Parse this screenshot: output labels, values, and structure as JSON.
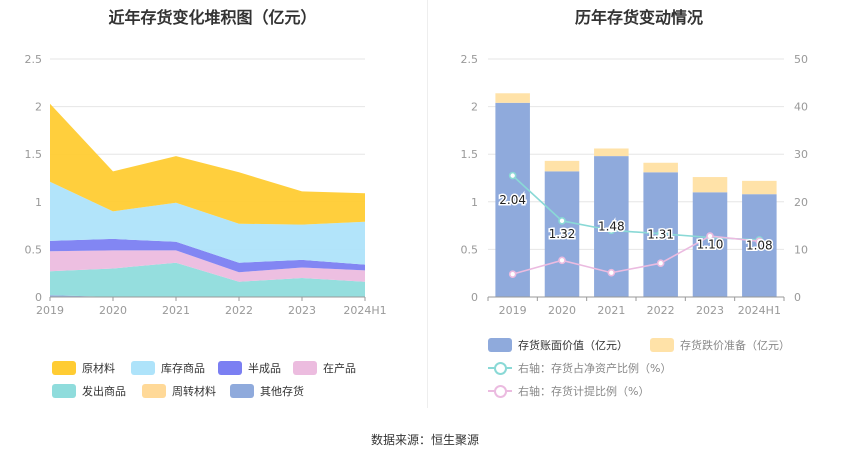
{
  "source": "数据来源：恒生聚源",
  "colors": {
    "raw_materials": "#ffcc33",
    "finished_goods": "#aee3fa",
    "semi_finished": "#7b7ff2",
    "wip": "#ecbcdf",
    "goods_shipped": "#8fdcdc",
    "turnover_materials": "#ffd998",
    "other": "#8faadc",
    "book_value_bar": "#8faadc",
    "impairment_bar": "#ffe2a8",
    "ratio_net_assets_line": "#8ad9d6",
    "ratio_provision_line": "#ebbbe0"
  },
  "chart_data": [
    {
      "type": "area",
      "title": "近年存货变化堆积图（亿元）",
      "categories": [
        "2019",
        "2020",
        "2021",
        "2022",
        "2023",
        "2024H1"
      ],
      "ylim": [
        0,
        2.5
      ],
      "yticks": [
        "0",
        "0.5",
        "1",
        "1.5",
        "2",
        "2.5"
      ],
      "stacking": "stacked",
      "series": [
        {
          "name": "其他存货",
          "key": "other",
          "values": [
            0.02,
            0.0,
            0.0,
            0.0,
            0.0,
            0.0
          ]
        },
        {
          "name": "发出商品",
          "key": "goods_shipped",
          "values": [
            0.25,
            0.3,
            0.36,
            0.16,
            0.2,
            0.16
          ]
        },
        {
          "name": "在产品",
          "key": "wip",
          "values": [
            0.21,
            0.19,
            0.13,
            0.1,
            0.11,
            0.12
          ]
        },
        {
          "name": "半成品",
          "key": "semi_finished",
          "values": [
            0.11,
            0.12,
            0.09,
            0.1,
            0.08,
            0.06
          ]
        },
        {
          "name": "库存商品",
          "key": "finished_goods",
          "values": [
            0.62,
            0.29,
            0.41,
            0.41,
            0.37,
            0.45
          ]
        },
        {
          "name": "周转材料",
          "key": "turnover_materials",
          "values": [
            0.0,
            0.0,
            0.0,
            0.0,
            0.0,
            0.0
          ]
        },
        {
          "name": "原材料",
          "key": "raw_materials",
          "values": [
            0.82,
            0.42,
            0.49,
            0.54,
            0.35,
            0.3
          ]
        }
      ],
      "legend": {
        "placement": "bottom",
        "items": [
          {
            "label": "原材料",
            "key": "raw_materials"
          },
          {
            "label": "库存商品",
            "key": "finished_goods"
          },
          {
            "label": "半成品",
            "key": "semi_finished"
          },
          {
            "label": "在产品",
            "key": "wip"
          },
          {
            "label": "发出商品",
            "key": "goods_shipped"
          },
          {
            "label": "周转材料",
            "key": "turnover_materials"
          },
          {
            "label": "其他存货",
            "key": "other"
          }
        ]
      },
      "grid": true
    },
    {
      "type": "bar",
      "title": "历年存货变动情况",
      "categories": [
        "2019",
        "2020",
        "2021",
        "2022",
        "2023",
        "2024H1"
      ],
      "ylim": [
        0,
        2.5
      ],
      "yticks": [
        "0",
        "0.5",
        "1",
        "1.5",
        "2",
        "2.5"
      ],
      "y2lim": [
        0,
        50
      ],
      "y2ticks": [
        "0",
        "10",
        "20",
        "30",
        "40",
        "50"
      ],
      "series": [
        {
          "name": "存货账面价值（亿元）",
          "key": "book_value_bar",
          "axis": "left",
          "kind": "bar",
          "values": [
            2.04,
            1.32,
            1.48,
            1.31,
            1.1,
            1.08
          ],
          "labels": [
            "2.04",
            "1.32",
            "1.48",
            "1.31",
            "1.10",
            "1.08"
          ]
        },
        {
          "name": "存货跌价准备（亿元）",
          "key": "impairment_bar",
          "axis": "left",
          "kind": "bar-stacked",
          "values": [
            0.1,
            0.11,
            0.08,
            0.1,
            0.16,
            0.14
          ]
        },
        {
          "name": "右轴：存货占净资产比例（%）",
          "key": "ratio_net_assets_line",
          "axis": "right",
          "kind": "line",
          "values": [
            25.5,
            16.0,
            14.0,
            13.3,
            12.5,
            12.0
          ]
        },
        {
          "name": "右轴：存货计提比例（%）",
          "key": "ratio_provision_line",
          "axis": "right",
          "kind": "line",
          "values": [
            4.8,
            7.7,
            5.1,
            7.1,
            12.8,
            11.7
          ]
        }
      ],
      "legend": {
        "placement": "bottom"
      },
      "grid": true
    }
  ]
}
